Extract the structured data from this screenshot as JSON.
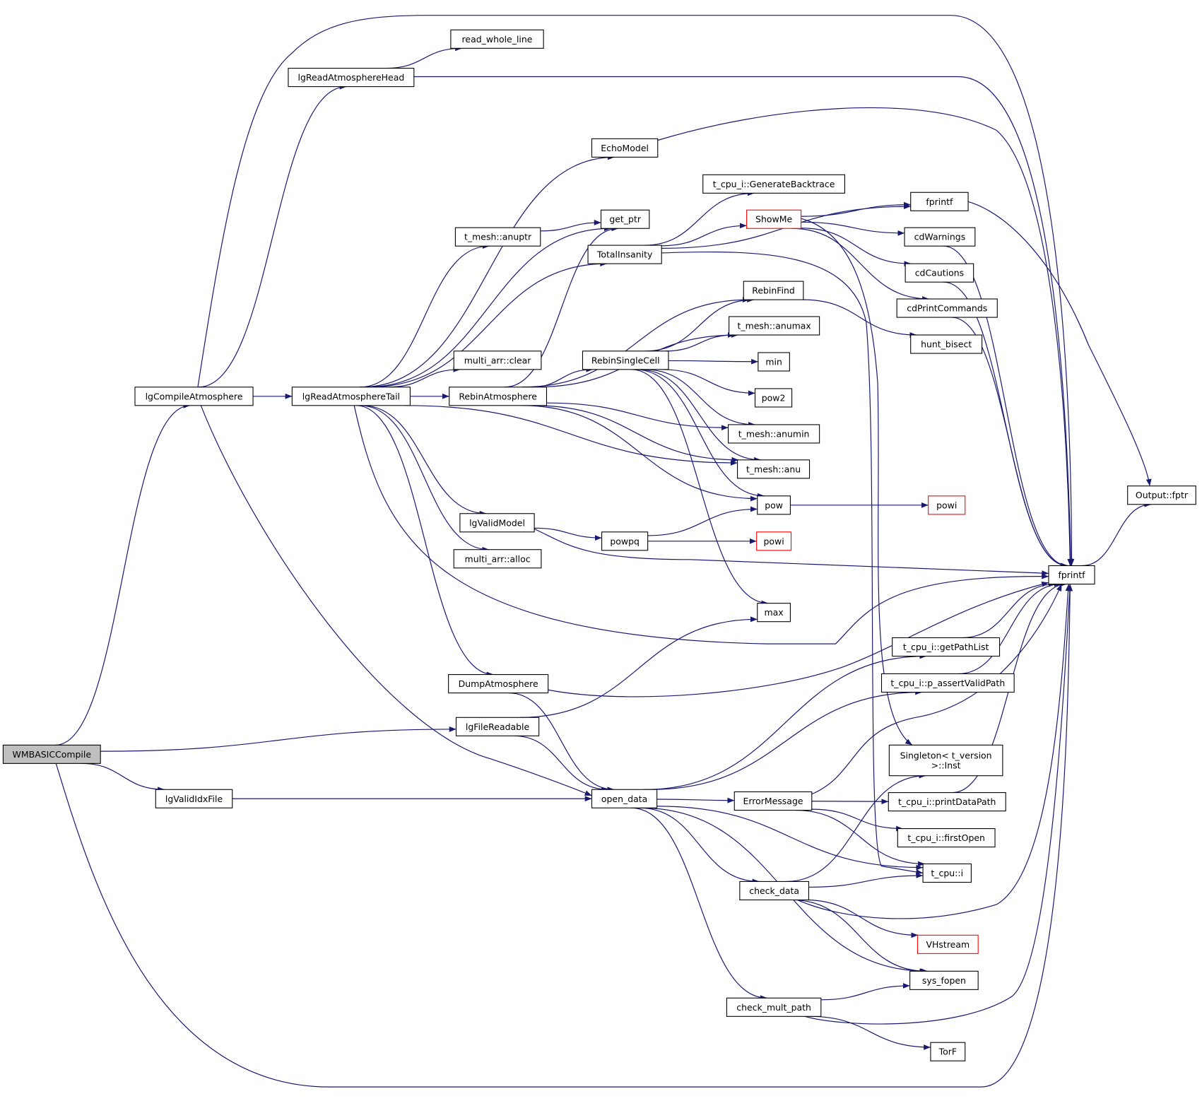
{
  "colors": {
    "edge": "#191970",
    "root_fill": "#bfbfbf",
    "truncated_border": "#ff0000",
    "node_border": "#000000"
  },
  "nodes": [
    {
      "id": "wmbasiccompile",
      "label": "WMBASICCompile",
      "root": true
    },
    {
      "id": "lgcompileatmosphere",
      "label": "lgCompileAtmosphere"
    },
    {
      "id": "lgreadatmospherehead",
      "label": "lgReadAtmosphereHead"
    },
    {
      "id": "read_whole_line",
      "label": "read_whole_line"
    },
    {
      "id": "lgreadatmospheretail",
      "label": "lgReadAtmosphereTail"
    },
    {
      "id": "echomodel",
      "label": "EchoModel"
    },
    {
      "id": "anuptr",
      "label": "t_mesh::anuptr"
    },
    {
      "id": "get_ptr",
      "label": "get_ptr"
    },
    {
      "id": "totalinsanity",
      "label": "TotalInsanity"
    },
    {
      "id": "multi_arr_clear",
      "label": "multi_arr::clear"
    },
    {
      "id": "rebinatmosphere",
      "label": "RebinAtmosphere"
    },
    {
      "id": "rebinsinglecell",
      "label": "RebinSingleCell"
    },
    {
      "id": "lgvalidmodel",
      "label": "lgValidModel"
    },
    {
      "id": "multi_arr_alloc",
      "label": "multi_arr::alloc"
    },
    {
      "id": "dumpatmosphere",
      "label": "DumpAtmosphere"
    },
    {
      "id": "lgfilereadable",
      "label": "lgFileReadable"
    },
    {
      "id": "lgvalididxfile",
      "label": "lgValidIdxFile"
    },
    {
      "id": "open_data",
      "label": "open_data"
    },
    {
      "id": "generatebacktrace",
      "label": "t_cpu_i::GenerateBacktrace"
    },
    {
      "id": "showme",
      "label": "ShowMe",
      "truncated": true
    },
    {
      "id": "rebinfind",
      "label": "RebinFind"
    },
    {
      "id": "anumax",
      "label": "t_mesh::anumax"
    },
    {
      "id": "min",
      "label": "min"
    },
    {
      "id": "pow2",
      "label": "pow2"
    },
    {
      "id": "anumin",
      "label": "t_mesh::anumin"
    },
    {
      "id": "anu",
      "label": "t_mesh::anu"
    },
    {
      "id": "pow",
      "label": "pow"
    },
    {
      "id": "powpq",
      "label": "powpq"
    },
    {
      "id": "powi_1",
      "label": "powi",
      "truncated": true
    },
    {
      "id": "powi_2",
      "label": "powi",
      "truncated": true
    },
    {
      "id": "max",
      "label": "max"
    },
    {
      "id": "fprintf_small",
      "label": "fprintf"
    },
    {
      "id": "cdwarnings",
      "label": "cdWarnings"
    },
    {
      "id": "cdcautions",
      "label": "cdCautions"
    },
    {
      "id": "cdprintcommands",
      "label": "cdPrintCommands"
    },
    {
      "id": "hunt_bisect",
      "label": "hunt_bisect"
    },
    {
      "id": "fprintf",
      "label": "fprintf"
    },
    {
      "id": "output_fptr",
      "label": "Output::fptr"
    },
    {
      "id": "getpathlist",
      "label": "t_cpu_i::getPathList"
    },
    {
      "id": "p_assertvalidpath",
      "label": "t_cpu_i::p_assertValidPath"
    },
    {
      "id": "singleton_inst",
      "lines": [
        "Singleton< t_version",
        ">::Inst"
      ]
    },
    {
      "id": "errormessage",
      "label": "ErrorMessage"
    },
    {
      "id": "printdatapath",
      "label": "t_cpu_i::printDataPath"
    },
    {
      "id": "firstopen",
      "label": "t_cpu_i::firstOpen"
    },
    {
      "id": "t_cpu_i",
      "label": "t_cpu::i"
    },
    {
      "id": "check_data",
      "label": "check_data"
    },
    {
      "id": "vhstream",
      "label": "VHstream",
      "truncated": true
    },
    {
      "id": "sys_fopen",
      "label": "sys_fopen"
    },
    {
      "id": "check_mult_path",
      "label": "check_mult_path"
    },
    {
      "id": "torf",
      "label": "TorF"
    }
  ],
  "edges": [
    [
      "wmbasiccompile",
      "lgcompileatmosphere"
    ],
    [
      "wmbasiccompile",
      "lgfilereadable"
    ],
    [
      "wmbasiccompile",
      "lgvalididxfile"
    ],
    [
      "wmbasiccompile",
      "fprintf"
    ],
    [
      "lgcompileatmosphere",
      "lgreadatmospherehead"
    ],
    [
      "lgcompileatmosphere",
      "lgreadatmospheretail"
    ],
    [
      "lgcompileatmosphere",
      "open_data"
    ],
    [
      "lgcompileatmosphere",
      "fprintf"
    ],
    [
      "lgreadatmospherehead",
      "read_whole_line"
    ],
    [
      "lgreadatmospherehead",
      "fprintf"
    ],
    [
      "lgreadatmospheretail",
      "echomodel"
    ],
    [
      "lgreadatmospheretail",
      "anuptr"
    ],
    [
      "lgreadatmospheretail",
      "get_ptr"
    ],
    [
      "lgreadatmospheretail",
      "totalinsanity"
    ],
    [
      "lgreadatmospheretail",
      "multi_arr_clear"
    ],
    [
      "lgreadatmospheretail",
      "rebinatmosphere"
    ],
    [
      "lgreadatmospheretail",
      "anu"
    ],
    [
      "lgreadatmospheretail",
      "lgvalidmodel"
    ],
    [
      "lgreadatmospheretail",
      "multi_arr_alloc"
    ],
    [
      "lgreadatmospheretail",
      "dumpatmosphere"
    ],
    [
      "lgreadatmospheretail",
      "fprintf"
    ],
    [
      "echomodel",
      "fprintf"
    ],
    [
      "anuptr",
      "get_ptr"
    ],
    [
      "totalinsanity",
      "fprintf_small"
    ],
    [
      "totalinsanity",
      "generatebacktrace"
    ],
    [
      "totalinsanity",
      "showme"
    ],
    [
      "totalinsanity",
      "t_cpu_i"
    ],
    [
      "showme",
      "fprintf_small"
    ],
    [
      "showme",
      "cdwarnings"
    ],
    [
      "showme",
      "cdcautions"
    ],
    [
      "showme",
      "cdprintcommands"
    ],
    [
      "showme",
      "singleton_inst"
    ],
    [
      "rebinatmosphere",
      "get_ptr"
    ],
    [
      "rebinatmosphere",
      "rebinfind"
    ],
    [
      "rebinatmosphere",
      "anumax"
    ],
    [
      "rebinatmosphere",
      "rebinsinglecell"
    ],
    [
      "rebinatmosphere",
      "anumin"
    ],
    [
      "rebinatmosphere",
      "anu"
    ],
    [
      "rebinatmosphere",
      "pow"
    ],
    [
      "rebinsinglecell",
      "rebinfind"
    ],
    [
      "rebinsinglecell",
      "anumax"
    ],
    [
      "rebinsinglecell",
      "min"
    ],
    [
      "rebinsinglecell",
      "pow2"
    ],
    [
      "rebinsinglecell",
      "anumin"
    ],
    [
      "rebinsinglecell",
      "anu"
    ],
    [
      "rebinsinglecell",
      "pow"
    ],
    [
      "rebinsinglecell",
      "max"
    ],
    [
      "rebinfind",
      "hunt_bisect"
    ],
    [
      "pow",
      "powi_2"
    ],
    [
      "lgvalidmodel",
      "powpq"
    ],
    [
      "lgvalidmodel",
      "fprintf"
    ],
    [
      "powpq",
      "pow"
    ],
    [
      "powpq",
      "powi_1"
    ],
    [
      "dumpatmosphere",
      "fprintf"
    ],
    [
      "dumpatmosphere",
      "open_data"
    ],
    [
      "lgfilereadable",
      "max"
    ],
    [
      "lgfilereadable",
      "open_data"
    ],
    [
      "lgvalididxfile",
      "open_data"
    ],
    [
      "open_data",
      "getpathlist"
    ],
    [
      "open_data",
      "p_assertvalidpath"
    ],
    [
      "open_data",
      "errormessage"
    ],
    [
      "open_data",
      "t_cpu_i"
    ],
    [
      "open_data",
      "check_data"
    ],
    [
      "open_data",
      "sys_fopen"
    ],
    [
      "open_data",
      "check_mult_path"
    ],
    [
      "errormessage",
      "fprintf"
    ],
    [
      "errormessage",
      "printdatapath"
    ],
    [
      "errormessage",
      "firstopen"
    ],
    [
      "errormessage",
      "t_cpu_i"
    ],
    [
      "check_data",
      "singleton_inst"
    ],
    [
      "check_data",
      "t_cpu_i"
    ],
    [
      "check_data",
      "fprintf"
    ],
    [
      "check_data",
      "vhstream"
    ],
    [
      "check_data",
      "sys_fopen"
    ],
    [
      "check_mult_path",
      "sys_fopen"
    ],
    [
      "check_mult_path",
      "fprintf"
    ],
    [
      "check_mult_path",
      "torf"
    ],
    [
      "fprintf_small",
      "output_fptr"
    ],
    [
      "cdwarnings",
      "fprintf"
    ],
    [
      "cdcautions",
      "fprintf"
    ],
    [
      "cdprintcommands",
      "fprintf"
    ],
    [
      "getpathlist",
      "fprintf"
    ],
    [
      "p_assertvalidpath",
      "fprintf"
    ],
    [
      "printdatapath",
      "fprintf"
    ],
    [
      "fprintf",
      "output_fptr"
    ]
  ]
}
